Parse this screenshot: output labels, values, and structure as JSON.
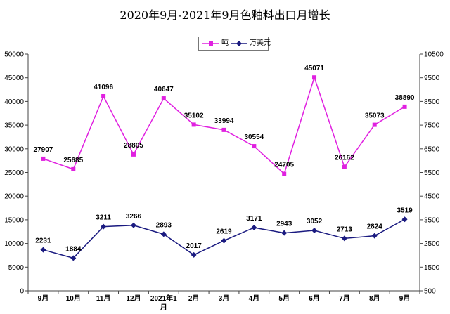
{
  "chart_data": {
    "type": "line",
    "title": "2020年9月-2021年9月色釉料出口月增长",
    "categories": [
      "9月",
      "10月",
      "11月",
      "12月",
      "2021年1月",
      "2月",
      "3月",
      "4月",
      "5月",
      "6月",
      "7月",
      "8月",
      "9月"
    ],
    "series": [
      {
        "name": "吨",
        "axis": "left",
        "color": "#e020e0",
        "marker": "square",
        "values": [
          27907,
          25685,
          41096,
          28805,
          40647,
          35102,
          33994,
          30554,
          24705,
          45071,
          26162,
          35073,
          38890
        ]
      },
      {
        "name": "万美元",
        "axis": "right",
        "color": "#1a1a80",
        "marker": "diamond",
        "values": [
          2231,
          1884,
          3211,
          3266,
          2893,
          2017,
          2619,
          3171,
          2943,
          3052,
          2713,
          2824,
          3519
        ]
      }
    ],
    "y_left": {
      "min": 0,
      "max": 50000,
      "step": 5000
    },
    "y_right": {
      "min": 500,
      "max": 10500,
      "step": 1000
    },
    "grid": false,
    "legend": "top-center"
  }
}
